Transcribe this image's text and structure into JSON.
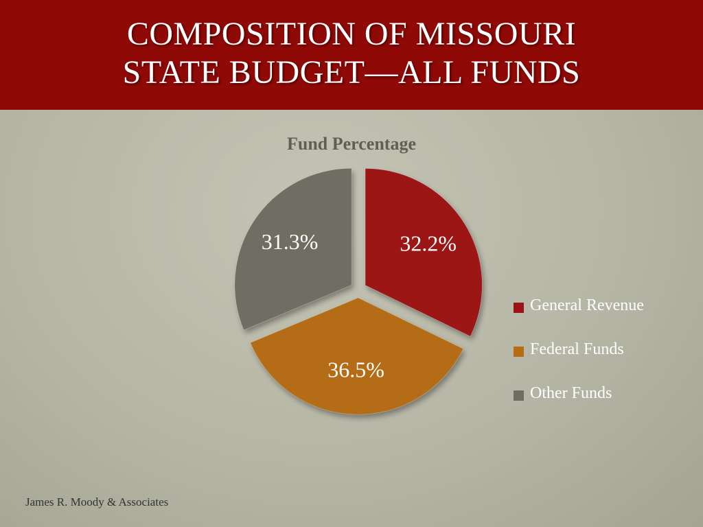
{
  "slide": {
    "title_line1": "COMPOSITION OF MISSOURI",
    "title_line2": "STATE BUDGET—ALL FUNDS",
    "footer": "James R. Moody & Associates"
  },
  "colors": {
    "title_band": "#8f0906",
    "general_revenue": "#9c1216",
    "federal_funds": "#b56c13",
    "other_funds": "#6f6d62"
  },
  "chart_data": {
    "type": "pie",
    "title": "Fund Percentage",
    "legend_position": "right",
    "exploded": true,
    "start_angle_deg": 0,
    "direction": "clockwise",
    "series": [
      {
        "name": "Fund Percentage",
        "slices": [
          {
            "label": "General Revenue",
            "value": 32.2,
            "data_label": "32.2%",
            "color": "#9c1216"
          },
          {
            "label": "Federal Funds",
            "value": 36.5,
            "data_label": "36.5%",
            "color": "#b56c13"
          },
          {
            "label": "Other Funds",
            "value": 31.3,
            "data_label": "31.3%",
            "color": "#6f6d62"
          }
        ]
      }
    ]
  }
}
